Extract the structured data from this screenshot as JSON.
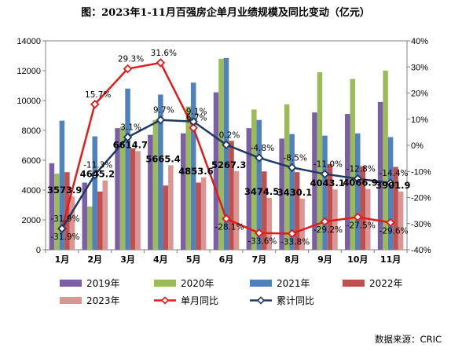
{
  "chart_data": {
    "type": "bar",
    "title": "图：2023年1-11月百强房企单月业绩规模及同比变动（亿元）",
    "source": "数据来源：CRIC",
    "categories": [
      "1月",
      "2月",
      "3月",
      "4月",
      "5月",
      "6月",
      "7月",
      "8月",
      "9月",
      "10月",
      "11月"
    ],
    "y_left": {
      "lim": [
        0,
        14000
      ],
      "ticks": [
        "0",
        "2000",
        "4000",
        "6000",
        "8000",
        "10000",
        "12000",
        "14000"
      ]
    },
    "y_right": {
      "lim": [
        -40,
        40
      ],
      "ticks": [
        "-40%",
        "-30%",
        "-20%",
        "-10%",
        "0%",
        "10%",
        "20%",
        "30%",
        "40%"
      ]
    },
    "bar_series": [
      {
        "name": "2019年",
        "color": "#7b5fa6",
        "values": [
          5800,
          4500,
          8150,
          7700,
          7800,
          10550,
          8150,
          7450,
          9200,
          9100,
          9900
        ]
      },
      {
        "name": "2020年",
        "color": "#9bbb59",
        "values": [
          5100,
          2900,
          8250,
          8700,
          9600,
          12800,
          9400,
          9750,
          11900,
          11450,
          12000
        ]
      },
      {
        "name": "2021年",
        "color": "#4f81bd",
        "values": [
          8650,
          7600,
          10800,
          10400,
          11200,
          12850,
          8700,
          7750,
          7650,
          7800,
          7550
        ]
      },
      {
        "name": "2022年",
        "color": "#c0504d",
        "values": [
          5200,
          3900,
          6800,
          4300,
          4500,
          7300,
          5250,
          5200,
          5750,
          5600,
          5550
        ]
      },
      {
        "name": "2023年",
        "color": "#d99694",
        "values": [
          3573.9,
          4645.2,
          6614.7,
          5665.4,
          4853.6,
          5267.3,
          3474.5,
          3430.1,
          4043.1,
          4066.9,
          3901.9
        ]
      }
    ],
    "bar_labels": [
      "3573.9",
      "4645.2",
      "6614.7",
      "5665.4",
      "4853.6",
      "5267.3",
      "3474.5",
      "3430.1",
      "4043.1",
      "4066.9",
      "3901.9"
    ],
    "line_series": [
      {
        "name": "单月同比",
        "color": "#e31a1c",
        "values": [
          -31.9,
          15.7,
          29.3,
          31.6,
          6.7,
          -28.1,
          -33.6,
          -33.8,
          -29.2,
          -27.5,
          -29.6
        ],
        "labels": [
          "-31.9%",
          "15.7%",
          "29.3%",
          "31.6%",
          "6.7%",
          "-28.1%",
          "-33.6%",
          "-33.8%",
          "-29.2%",
          "-27.5%",
          "-29.6%"
        ]
      },
      {
        "name": "累计同比",
        "color": "#1f3864",
        "values": [
          -31.9,
          -11.3,
          3.1,
          9.7,
          9.1,
          0.2,
          -4.8,
          -8.5,
          -11.0,
          -12.8,
          -14.4
        ],
        "labels": [
          "-31.9%",
          "-11.3%",
          "3.1%",
          "9.7%",
          "9.1%",
          "0.2%",
          "-4.8%",
          "-8.5%",
          "-11.0%",
          "-12.8%",
          "-14.4%"
        ]
      }
    ],
    "legend": [
      "2019年",
      "2020年",
      "2021年",
      "2022年",
      "2023年",
      "单月同比",
      "累计同比"
    ]
  }
}
